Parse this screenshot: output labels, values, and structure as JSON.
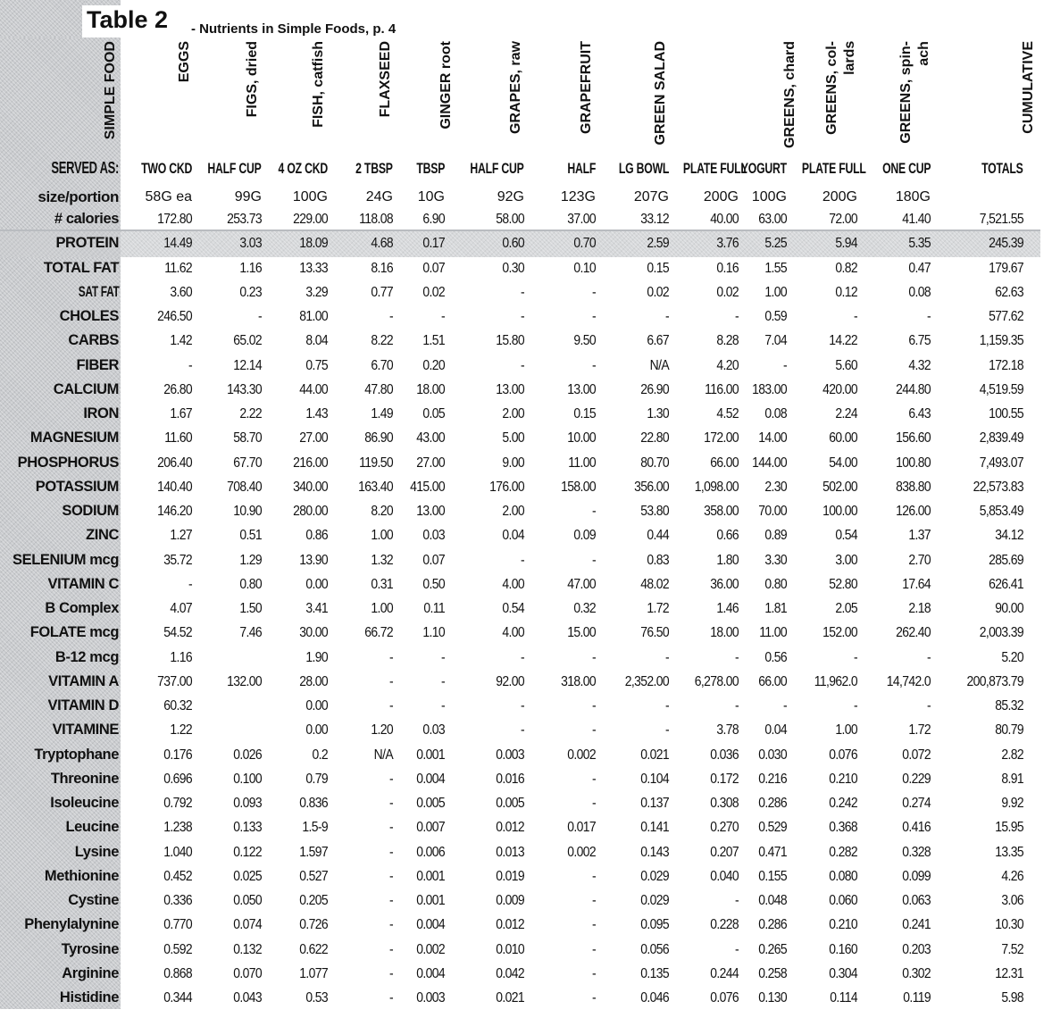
{
  "title": "Table 2",
  "subtitle": "- Nutrients in Simple Foods, p. 4",
  "row_header": "SIMPLE FOOD",
  "served_label": "SERVED AS:",
  "size_label": "size/portion",
  "columns": [
    {
      "header": "EGGS",
      "served_as": "TWO CKD",
      "size": "58G  ea"
    },
    {
      "header": "FIGS, dried",
      "served_as": "HALF CUP",
      "size": "99G"
    },
    {
      "header": "FISH, catfish",
      "served_as": "4 OZ CKD",
      "size": "100G"
    },
    {
      "header": "FLAXSEED",
      "served_as": "2 TBSP",
      "size": "24G"
    },
    {
      "header": "GINGER root",
      "served_as": "TBSP",
      "size": "10G"
    },
    {
      "header": "GRAPES, raw",
      "served_as": "HALF CUP",
      "size": "92G"
    },
    {
      "header": "GRAPEFRUIT",
      "served_as": "HALF",
      "size": "123G"
    },
    {
      "header": "GREEN SALAD",
      "served_as": "LG BOWL",
      "size": "207G"
    },
    {
      "header": "",
      "served_as": "PLATE FULL",
      "size": "200G"
    },
    {
      "header": "GREENS, chard",
      "served_as": "YOGURT",
      "size": "100G"
    },
    {
      "header": "GREENS, col-\nlards",
      "served_as": "PLATE FULL",
      "size": "200G"
    },
    {
      "header": "GREENS, spin-\nach",
      "served_as": "ONE CUP",
      "size": "180G"
    },
    {
      "header": "CUMULATIVE",
      "served_as": "TOTALS",
      "size": ""
    }
  ],
  "rows": [
    {
      "label": "# calories",
      "values": [
        "172.80",
        "253.73",
        "229.00",
        "118.08",
        "6.90",
        "58.00",
        "37.00",
        "33.12",
        "40.00",
        "63.00",
        "72.00",
        "41.40",
        "7,521.55"
      ]
    },
    {
      "label": "PROTEIN",
      "values": [
        "14.49",
        "3.03",
        "18.09",
        "4.68",
        "0.17",
        "0.60",
        "0.70",
        "2.59",
        "3.76",
        "5.25",
        "5.94",
        "5.35",
        "245.39"
      ]
    },
    {
      "label": "TOTAL FAT",
      "values": [
        "11.62",
        "1.16",
        "13.33",
        "8.16",
        "0.07",
        "0.30",
        "0.10",
        "0.15",
        "0.16",
        "1.55",
        "0.82",
        "0.47",
        "179.67"
      ]
    },
    {
      "label": "SAT FAT",
      "values": [
        "3.60",
        "0.23",
        "3.29",
        "0.77",
        "0.02",
        "-",
        "-",
        "0.02",
        "0.02",
        "1.00",
        "0.12",
        "0.08",
        "62.63"
      ]
    },
    {
      "label": "CHOLES",
      "values": [
        "246.50",
        "-",
        "81.00",
        "-",
        "-",
        "-",
        "-",
        "-",
        "-",
        "0.59",
        "-",
        "-",
        "577.62"
      ]
    },
    {
      "label": "CARBS",
      "values": [
        "1.42",
        "65.02",
        "8.04",
        "8.22",
        "1.51",
        "15.80",
        "9.50",
        "6.67",
        "8.28",
        "7.04",
        "14.22",
        "6.75",
        "1,159.35"
      ]
    },
    {
      "label": "FIBER",
      "values": [
        "-",
        "12.14",
        "0.75",
        "6.70",
        "0.20",
        "-",
        "-",
        "N/A",
        "4.20",
        "-",
        "5.60",
        "4.32",
        "172.18"
      ]
    },
    {
      "label": "CALCIUM",
      "values": [
        "26.80",
        "143.30",
        "44.00",
        "47.80",
        "18.00",
        "13.00",
        "13.00",
        "26.90",
        "116.00",
        "183.00",
        "420.00",
        "244.80",
        "4,519.59"
      ]
    },
    {
      "label": "IRON",
      "values": [
        "1.67",
        "2.22",
        "1.43",
        "1.49",
        "0.05",
        "2.00",
        "0.15",
        "1.30",
        "4.52",
        "0.08",
        "2.24",
        "6.43",
        "100.55"
      ]
    },
    {
      "label": "MAGNESIUM",
      "values": [
        "11.60",
        "58.70",
        "27.00",
        "86.90",
        "43.00",
        "5.00",
        "10.00",
        "22.80",
        "172.00",
        "14.00",
        "60.00",
        "156.60",
        "2,839.49"
      ]
    },
    {
      "label": "PHOSPHORUS",
      "values": [
        "206.40",
        "67.70",
        "216.00",
        "119.50",
        "27.00",
        "9.00",
        "11.00",
        "80.70",
        "66.00",
        "144.00",
        "54.00",
        "100.80",
        "7,493.07"
      ]
    },
    {
      "label": "POTASSIUM",
      "values": [
        "140.40",
        "708.40",
        "340.00",
        "163.40",
        "415.00",
        "176.00",
        "158.00",
        "356.00",
        "1,098.00",
        "2.30",
        "502.00",
        "838.80",
        "22,573.83"
      ]
    },
    {
      "label": "SODIUM",
      "values": [
        "146.20",
        "10.90",
        "280.00",
        "8.20",
        "13.00",
        "2.00",
        "-",
        "53.80",
        "358.00",
        "70.00",
        "100.00",
        "126.00",
        "5,853.49"
      ]
    },
    {
      "label": "ZINC",
      "values": [
        "1.27",
        "0.51",
        "0.86",
        "1.00",
        "0.03",
        "0.04",
        "0.09",
        "0.44",
        "0.66",
        "0.89",
        "0.54",
        "1.37",
        "34.12"
      ]
    },
    {
      "label": "SELENIUM mcg",
      "values": [
        "35.72",
        "1.29",
        "13.90",
        "1.32",
        "0.07",
        "-",
        "-",
        "0.83",
        "1.80",
        "3.30",
        "3.00",
        "2.70",
        "285.69"
      ]
    },
    {
      "label": "VITAMIN C",
      "values": [
        "-",
        "0.80",
        "0.00",
        "0.31",
        "0.50",
        "4.00",
        "47.00",
        "48.02",
        "36.00",
        "0.80",
        "52.80",
        "17.64",
        "626.41"
      ]
    },
    {
      "label": "B Complex",
      "values": [
        "4.07",
        "1.50",
        "3.41",
        "1.00",
        "0.11",
        "0.54",
        "0.32",
        "1.72",
        "1.46",
        "1.81",
        "2.05",
        "2.18",
        "90.00"
      ]
    },
    {
      "label": "FOLATE mcg",
      "values": [
        "54.52",
        "7.46",
        "30.00",
        "66.72",
        "1.10",
        "4.00",
        "15.00",
        "76.50",
        "18.00",
        "11.00",
        "152.00",
        "262.40",
        "2,003.39"
      ]
    },
    {
      "label": "B-12 mcg",
      "values": [
        "1.16",
        "",
        "1.90",
        "-",
        "-",
        "-",
        "-",
        "-",
        "-",
        "0.56",
        "-",
        "-",
        "5.20"
      ]
    },
    {
      "label": "VITAMIN A",
      "values": [
        "737.00",
        "132.00",
        "28.00",
        "-",
        "-",
        "92.00",
        "318.00",
        "2,352.00",
        "6,278.00",
        "66.00",
        "11,962.0",
        "14,742.0",
        "200,873.79"
      ]
    },
    {
      "label": "VITAMIN D",
      "values": [
        "60.32",
        "",
        "0.00",
        "-",
        "-",
        "-",
        "-",
        "-",
        "-",
        "-",
        "-",
        "-",
        "85.32"
      ]
    },
    {
      "label": "VITAMINE",
      "values": [
        "1.22",
        "",
        "0.00",
        "1.20",
        "0.03",
        "-",
        "-",
        "-",
        "3.78",
        "0.04",
        "1.00",
        "1.72",
        "80.79"
      ]
    },
    {
      "label": "Tryptophane",
      "values": [
        "0.176",
        "0.026",
        "0.2",
        "N/A",
        "0.001",
        "0.003",
        "0.002",
        "0.021",
        "0.036",
        "0.030",
        "0.076",
        "0.072",
        "2.82"
      ]
    },
    {
      "label": "Threonine",
      "values": [
        "0.696",
        "0.100",
        "0.79",
        "-",
        "0.004",
        "0.016",
        "-",
        "0.104",
        "0.172",
        "0.216",
        "0.210",
        "0.229",
        "8.91"
      ]
    },
    {
      "label": "Isoleucine",
      "values": [
        "0.792",
        "0.093",
        "0.836",
        "-",
        "0.005",
        "0.005",
        "-",
        "0.137",
        "0.308",
        "0.286",
        "0.242",
        "0.274",
        "9.92"
      ]
    },
    {
      "label": "Leucine",
      "values": [
        "1.238",
        "0.133",
        "1.5-9",
        "-",
        "0.007",
        "0.012",
        "0.017",
        "0.141",
        "0.270",
        "0.529",
        "0.368",
        "0.416",
        "15.95"
      ]
    },
    {
      "label": "Lysine",
      "values": [
        "1.040",
        "0.122",
        "1.597",
        "-",
        "0.006",
        "0.013",
        "0.002",
        "0.143",
        "0.207",
        "0.471",
        "0.282",
        "0.328",
        "13.35"
      ]
    },
    {
      "label": "Methionine",
      "values": [
        "0.452",
        "0.025",
        "0.527",
        "-",
        "0.001",
        "0.019",
        "-",
        "0.029",
        "0.040",
        "0.155",
        "0.080",
        "0.099",
        "4.26"
      ]
    },
    {
      "label": "Cystine",
      "values": [
        "0.336",
        "0.050",
        "0.205",
        "-",
        "0.001",
        "0.009",
        "-",
        "0.029",
        "-",
        "0.048",
        "0.060",
        "0.063",
        "3.06"
      ]
    },
    {
      "label": "Phenylalynine",
      "values": [
        "0.770",
        "0.074",
        "0.726",
        "-",
        "0.004",
        "0.012",
        "-",
        "0.095",
        "0.228",
        "0.286",
        "0.210",
        "0.241",
        "10.30"
      ]
    },
    {
      "label": "Tyrosine",
      "values": [
        "0.592",
        "0.132",
        "0.622",
        "-",
        "0.002",
        "0.010",
        "-",
        "0.056",
        "-",
        "0.265",
        "0.160",
        "0.203",
        "7.52"
      ]
    },
    {
      "label": "Arginine",
      "values": [
        "0.868",
        "0.070",
        "1.077",
        "-",
        "0.004",
        "0.042",
        "-",
        "0.135",
        "0.244",
        "0.258",
        "0.304",
        "0.302",
        "12.31"
      ]
    },
    {
      "label": "Histidine",
      "values": [
        "0.344",
        "0.043",
        "0.53",
        "-",
        "0.003",
        "0.021",
        "-",
        "0.046",
        "0.076",
        "0.130",
        "0.114",
        "0.119",
        "5.98"
      ]
    }
  ]
}
